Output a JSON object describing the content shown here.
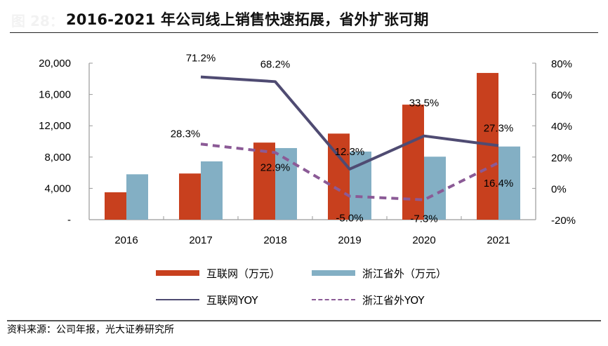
{
  "header": {
    "figure_prefix": "图 28：",
    "title": "2016-2021 年公司线上销售快速拓展，省外扩张可期"
  },
  "footer": {
    "source": "资料来源：公司年报，光大证券研究所"
  },
  "colors": {
    "internet_bar": "#c8401e",
    "outside_bar": "#83afc4",
    "internet_yoy_line": "#4f4b72",
    "outside_yoy_line": "#8b5a96",
    "axis": "#9a9a9a"
  },
  "chart_data": {
    "type": "bar",
    "title": "2016-2021 年公司线上销售快速拓展，省外扩张可期",
    "categories": [
      "2016",
      "2017",
      "2018",
      "2019",
      "2020",
      "2021"
    ],
    "series": [
      {
        "name": "互联网（万元）",
        "type": "bar",
        "axis": "left",
        "values": [
          3500,
          5900,
          9850,
          11000,
          14700,
          18750
        ]
      },
      {
        "name": "浙江省外（万元）",
        "type": "bar",
        "axis": "left",
        "values": [
          5800,
          7450,
          9150,
          8700,
          8050,
          9350
        ]
      },
      {
        "name": "互联网YOY",
        "type": "line",
        "style": "solid",
        "axis": "right",
        "values": [
          null,
          71.2,
          68.2,
          12.3,
          33.5,
          27.3
        ],
        "labels": [
          null,
          "71.2%",
          "68.2%",
          "12.3%",
          "33.5%",
          "27.3%"
        ]
      },
      {
        "name": "浙江省外YOY",
        "type": "line",
        "style": "dashed",
        "axis": "right",
        "values": [
          null,
          28.3,
          22.9,
          -5.0,
          -7.3,
          16.4
        ],
        "labels": [
          null,
          "28.3%",
          "22.9%",
          "-5.0%",
          "-7.3%",
          "16.4%"
        ]
      }
    ],
    "left_axis": {
      "ylim": [
        0,
        20000
      ],
      "ticks": [
        0,
        4000,
        8000,
        12000,
        16000,
        20000
      ],
      "tick_labels": [
        "-",
        "4,000",
        "8,000",
        "12,000",
        "16,000",
        "20,000"
      ]
    },
    "right_axis": {
      "ylim": [
        -20,
        80
      ],
      "ticks": [
        -20,
        0,
        20,
        40,
        60,
        80
      ],
      "tick_labels": [
        "-20%",
        "0%",
        "20%",
        "40%",
        "60%",
        "80%"
      ]
    },
    "xlabel": "",
    "ylabel": "",
    "grid": false,
    "legend_position": "bottom"
  }
}
